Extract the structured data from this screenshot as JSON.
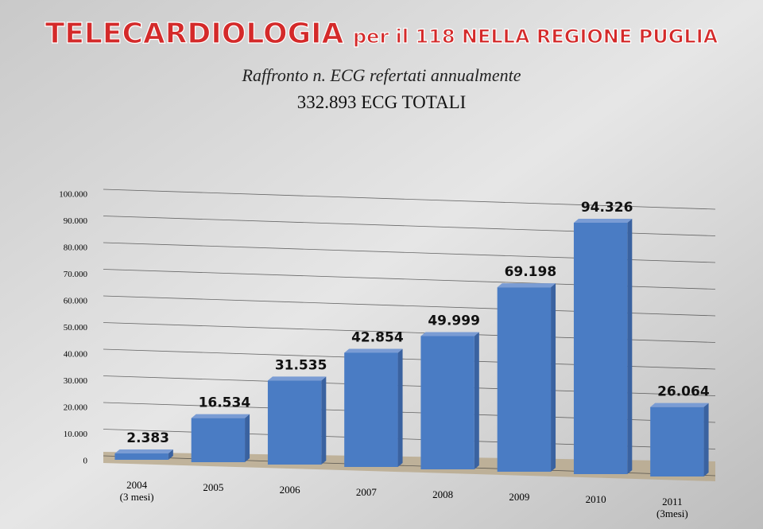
{
  "header": {
    "title_main": "TELECARDIOLOGIA",
    "title_rest": "per il 118 NELLA REGIONE PUGLIA",
    "subtitle": "Raffronto n. ECG refertati annualmente",
    "total": "332.893 ECG TOTALI"
  },
  "chart_data": {
    "type": "bar",
    "categories": [
      "2004\n(3 mesi)",
      "2005",
      "2006",
      "2007",
      "2008",
      "2009",
      "2010",
      "2011\n(3mesi)"
    ],
    "values": [
      2383,
      16534,
      31535,
      42854,
      49999,
      69198,
      94326,
      26064
    ],
    "value_labels": [
      "2.383",
      "16.534",
      "31.535",
      "42.854",
      "49.999",
      "69.198",
      "94.326",
      "26.064"
    ],
    "color": "#4a7cc4",
    "ylim": [
      0,
      100000
    ],
    "yticks": [
      0,
      {
        "value": 10000,
        "label": "10.000"
      },
      {
        "value": 20000,
        "label": "20.000"
      },
      {
        "value": 30000,
        "label": "30.000"
      },
      {
        "value": 40000,
        "label": "40.000"
      },
      {
        "value": 50000,
        "label": "50.000"
      },
      {
        "value": 60000,
        "label": "60.000"
      },
      {
        "value": 70000,
        "label": "70.000"
      },
      {
        "value": 80000,
        "label": "80.000"
      },
      {
        "value": 90000,
        "label": "90.000"
      },
      {
        "value": 100000,
        "label": "100.000"
      }
    ],
    "grid": true
  }
}
